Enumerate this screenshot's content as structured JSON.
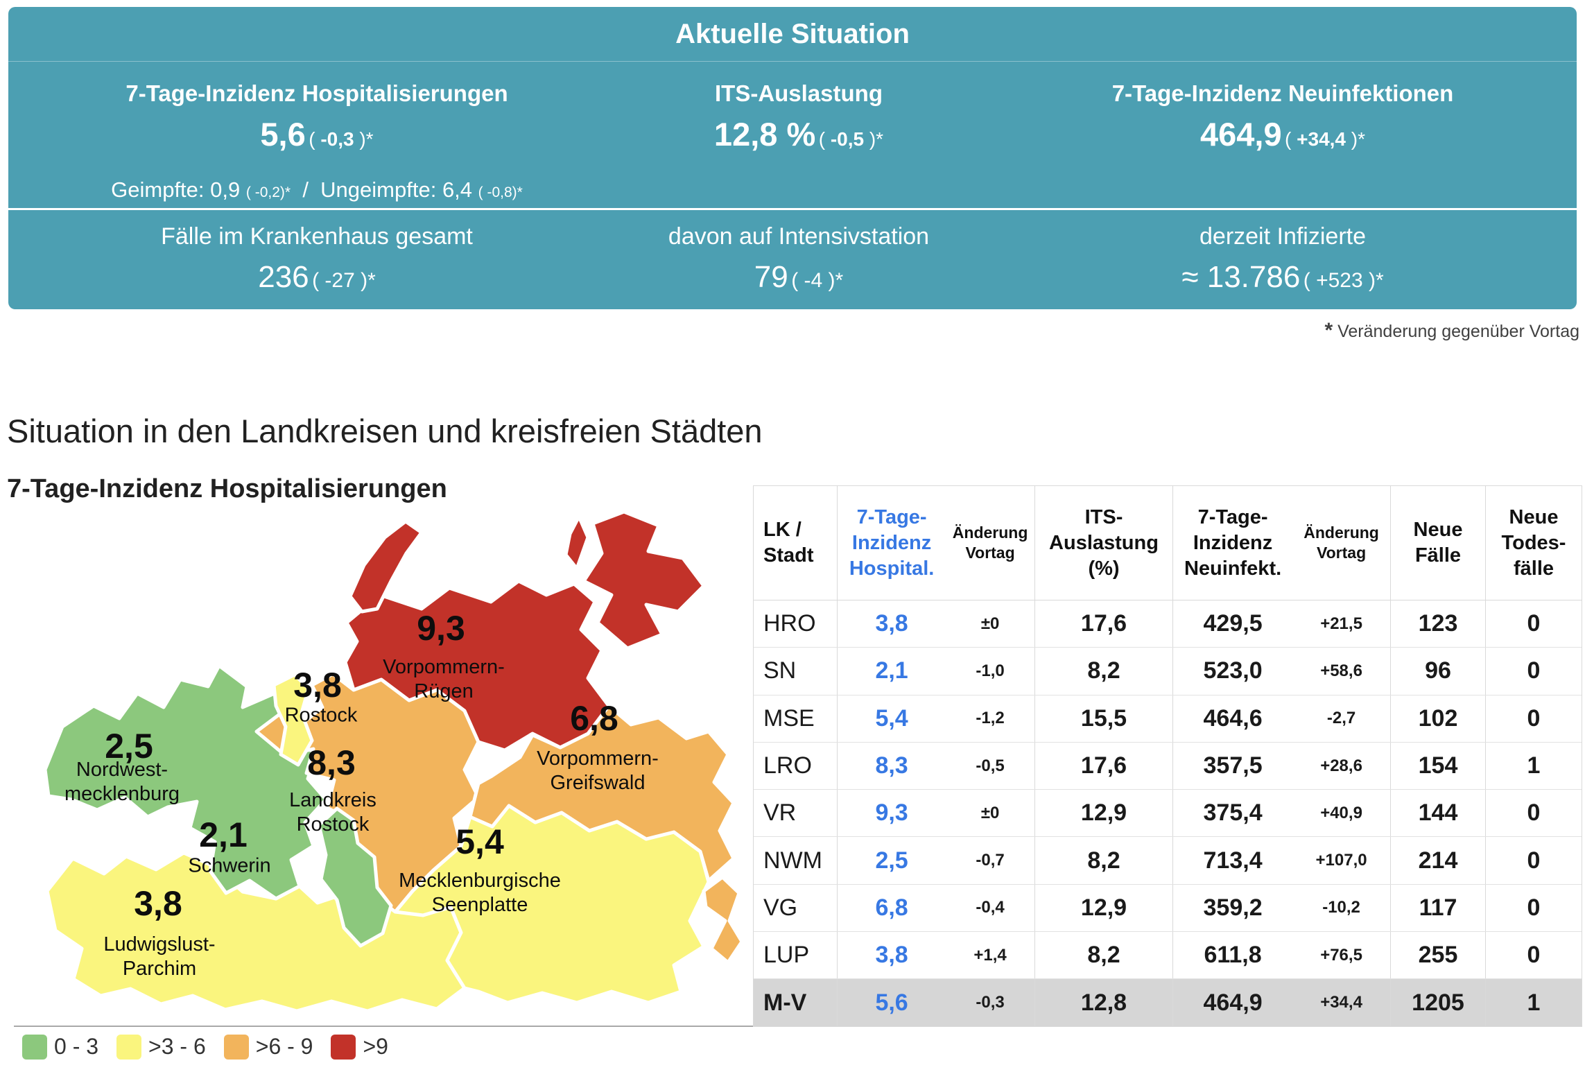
{
  "summary": {
    "title": "Aktuelle Situation",
    "row1": [
      {
        "label": "7-Tage-Inzidenz Hospitalisierungen",
        "value": "5,6",
        "pre": "( ",
        "num": "-0,3",
        "post": " )*"
      },
      {
        "label": "ITS-Auslastung",
        "value": "12,8 %",
        "pre": "( ",
        "num": "-0,5",
        "post": " )*"
      },
      {
        "label": "7-Tage-Inzidenz Neuinfektionen",
        "value": "464,9",
        "pre": "( ",
        "num": "+34,4",
        "post": " )*"
      }
    ],
    "vaccinated_line": {
      "g_label": "Geimpfte:",
      "g_value": "0,9",
      "g_change": "( -0,2)*",
      "separator": "/",
      "u_label": "Ungeimpfte:",
      "u_value": "6,4",
      "u_change": "( -0,8)*"
    },
    "row2": [
      {
        "label": "Fälle im Krankenhaus gesamt",
        "value": "236",
        "change": "( -27 )*"
      },
      {
        "label": "davon auf Intensivstation",
        "value": "79",
        "change": "( -4 )*"
      },
      {
        "label": "derzeit Infizierte",
        "value": "≈ 13.786",
        "change": "( +523 )*"
      }
    ],
    "footnote_star": "*",
    "footnote_text": "Veränderung gegenüber Vortag"
  },
  "section_heading": "Situation in den Landkreisen und kreisfreien Städten",
  "chart_data": [
    {
      "type": "choropleth",
      "title": "7-Tage-Inzidenz Hospitalisierungen",
      "legend": [
        {
          "range": "0 - 3",
          "color": "#8CC87D"
        },
        {
          "range": ">3 - 6",
          "color": "#FAF57E"
        },
        {
          "range": ">6 - 9",
          "color": "#F2B45C"
        },
        {
          "range": ">9",
          "color": "#C23229"
        }
      ],
      "regions": [
        {
          "name": "Nordwest-\nmecklenburg",
          "value": "2,5",
          "bucket": "0 - 3"
        },
        {
          "name": "Schwerin",
          "value": "2,1",
          "bucket": "0 - 3"
        },
        {
          "name": "Ludwigslust-\nParchim",
          "value": "3,8",
          "bucket": ">3 - 6"
        },
        {
          "name": "Rostock",
          "value": "3,8",
          "bucket": ">3 - 6"
        },
        {
          "name": "Landkreis\nRostock",
          "value": "8,3",
          "bucket": ">6 - 9"
        },
        {
          "name": "Vorpommern-\nRügen",
          "value": "9,3",
          "bucket": ">9"
        },
        {
          "name": "Vorpommern-\nGreifswald",
          "value": "6,8",
          "bucket": ">6 - 9"
        },
        {
          "name": "Mecklenburgische\nSeenplatte",
          "value": "5,4",
          "bucket": ">3 - 6"
        }
      ]
    },
    {
      "type": "table",
      "headers": {
        "col1": "LK /\nStadt",
        "col2_main": "7-Tage-\nInzidenz\nHospital.",
        "col2_sub": "Änderung\nVortag",
        "col3": "ITS-\nAuslastung\n(%)",
        "col4_main": "7-Tage-\nInzidenz\nNeuinfekt.",
        "col4_sub": "Änderung\nVortag",
        "col5": "Neue\nFälle",
        "col6": "Neue\nTodes-\nfälle"
      },
      "rows": [
        {
          "code": "HRO",
          "hosp": "3,8",
          "hosp_chg": "±0",
          "its": "17,6",
          "inz": "429,5",
          "inz_chg": "+21,5",
          "cases": "123",
          "deaths": "0",
          "total": false
        },
        {
          "code": "SN",
          "hosp": "2,1",
          "hosp_chg": "-1,0",
          "its": "8,2",
          "inz": "523,0",
          "inz_chg": "+58,6",
          "cases": "96",
          "deaths": "0",
          "total": false
        },
        {
          "code": "MSE",
          "hosp": "5,4",
          "hosp_chg": "-1,2",
          "its": "15,5",
          "inz": "464,6",
          "inz_chg": "-2,7",
          "cases": "102",
          "deaths": "0",
          "total": false
        },
        {
          "code": "LRO",
          "hosp": "8,3",
          "hosp_chg": "-0,5",
          "its": "17,6",
          "inz": "357,5",
          "inz_chg": "+28,6",
          "cases": "154",
          "deaths": "1",
          "total": false
        },
        {
          "code": "VR",
          "hosp": "9,3",
          "hosp_chg": "±0",
          "its": "12,9",
          "inz": "375,4",
          "inz_chg": "+40,9",
          "cases": "144",
          "deaths": "0",
          "total": false
        },
        {
          "code": "NWM",
          "hosp": "2,5",
          "hosp_chg": "-0,7",
          "its": "8,2",
          "inz": "713,4",
          "inz_chg": "+107,0",
          "cases": "214",
          "deaths": "0",
          "total": false
        },
        {
          "code": "VG",
          "hosp": "6,8",
          "hosp_chg": "-0,4",
          "its": "12,9",
          "inz": "359,2",
          "inz_chg": "-10,2",
          "cases": "117",
          "deaths": "0",
          "total": false
        },
        {
          "code": "LUP",
          "hosp": "3,8",
          "hosp_chg": "+1,4",
          "its": "8,2",
          "inz": "611,8",
          "inz_chg": "+76,5",
          "cases": "255",
          "deaths": "0",
          "total": false
        },
        {
          "code": "M-V",
          "hosp": "5,6",
          "hosp_chg": "-0,3",
          "its": "12,8",
          "inz": "464,9",
          "inz_chg": "+34,4",
          "cases": "1205",
          "deaths": "1",
          "total": true
        }
      ]
    }
  ],
  "colors": {
    "teal": "#4C9FB2",
    "blue": "#3778E3",
    "green": "#8CC87D",
    "yellow": "#FAF57E",
    "orange": "#F2B45C",
    "red": "#C23229",
    "total_row_bg": "#D6D6D6"
  }
}
